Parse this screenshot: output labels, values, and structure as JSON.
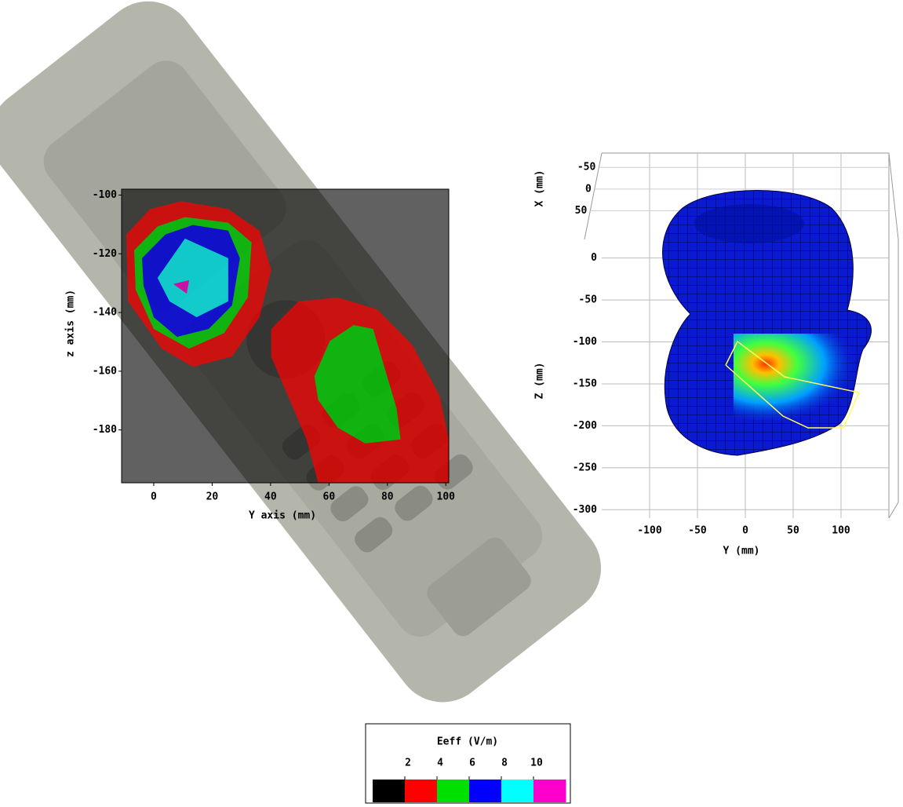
{
  "chart_data": [
    {
      "type": "contour",
      "x_label": "Y axis (mm)",
      "y_label": "z axis (mm)",
      "xlim": [
        -11,
        101
      ],
      "ylim": [
        -198,
        -98
      ],
      "xticks": [
        0,
        20,
        40,
        60,
        80,
        100
      ],
      "yticks": [
        -100,
        -120,
        -140,
        -160,
        -180
      ],
      "regions": [
        {
          "level": 2,
          "x": [
            -9.4,
            -1.3,
            9.4,
            25.5,
            36.2,
            40.2,
            36.2,
            26.8,
            13.4,
            2.7,
            -8.8
          ],
          "y": [
            -113.4,
            -104.8,
            -102.1,
            -104.8,
            -112.1,
            -125.5,
            -141.6,
            -155,
            -158.5,
            -152.3,
            -136.2
          ]
        },
        {
          "level": 2,
          "x": [
            40.2,
            49.6,
            63,
            76.4,
            88.5,
            97.9,
            101,
            101,
            56.3,
            52.3,
            44.2,
            40.2
          ],
          "y": [
            -145.6,
            -136.2,
            -134.9,
            -138.9,
            -151,
            -168.5,
            -183.2,
            -198,
            -198,
            -183.2,
            -164.4,
            -155
          ]
        },
        {
          "level": 4,
          "x": [
            -6.7,
            1.3,
            10.7,
            25.5,
            33.5,
            32.2,
            24.1,
            12.1,
            0,
            -6.2
          ],
          "y": [
            -118.8,
            -110.7,
            -107.5,
            -109.4,
            -116.1,
            -134.9,
            -147,
            -152.3,
            -145.6,
            -132.2
          ]
        },
        {
          "level": 4,
          "x": [
            55,
            60.3,
            68.4,
            75.1,
            79.1,
            83.1,
            84.5,
            72.4,
            63,
            56.3
          ],
          "y": [
            -161.7,
            -149.7,
            -144.3,
            -145.6,
            -159.1,
            -172.5,
            -183.2,
            -184.6,
            -179.2,
            -169.8
          ]
        },
        {
          "level": 6,
          "x": [
            -4,
            4,
            13.4,
            25.5,
            29.5,
            26.8,
            18.8,
            8,
            0,
            -3.5
          ],
          "y": [
            -121.5,
            -113.4,
            -110.2,
            -112.1,
            -121.5,
            -137.6,
            -145.6,
            -148.3,
            -141.6,
            -130.9
          ]
        },
        {
          "level": 8,
          "x": [
            1.3,
            10.7,
            25.5,
            25.5,
            14.7,
            5.4
          ],
          "y": [
            -128.2,
            -114.8,
            -121.5,
            -136.2,
            -141.6,
            -136.2
          ]
        },
        {
          "level": 10,
          "x": [
            6.7,
            12.1,
            11.3
          ],
          "y": [
            -130.3,
            -129,
            -133.6
          ]
        }
      ]
    },
    {
      "type": "surface3d",
      "x_label": "Y (mm)",
      "y_label": "X (mm)",
      "z_label": "Z (mm)",
      "xlim": [
        -150,
        150
      ],
      "xticks": [
        -100,
        -50,
        0,
        50,
        100
      ],
      "ylim": [
        -83,
        80
      ],
      "yticks": [
        -50,
        0,
        50
      ],
      "zlim": [
        -310,
        125
      ],
      "zticks": [
        0,
        -50,
        -100,
        -150,
        -200,
        -250,
        -300
      ]
    },
    {
      "type": "colorbar",
      "title": "Eeff (V/m)",
      "lim": [
        0,
        12
      ],
      "ticks": [
        2,
        4,
        6,
        8,
        10
      ],
      "colors": [
        "#000000",
        "#ff0000",
        "#00e000",
        "#0000ff",
        "#00ffff",
        "#ff00cc"
      ]
    }
  ]
}
